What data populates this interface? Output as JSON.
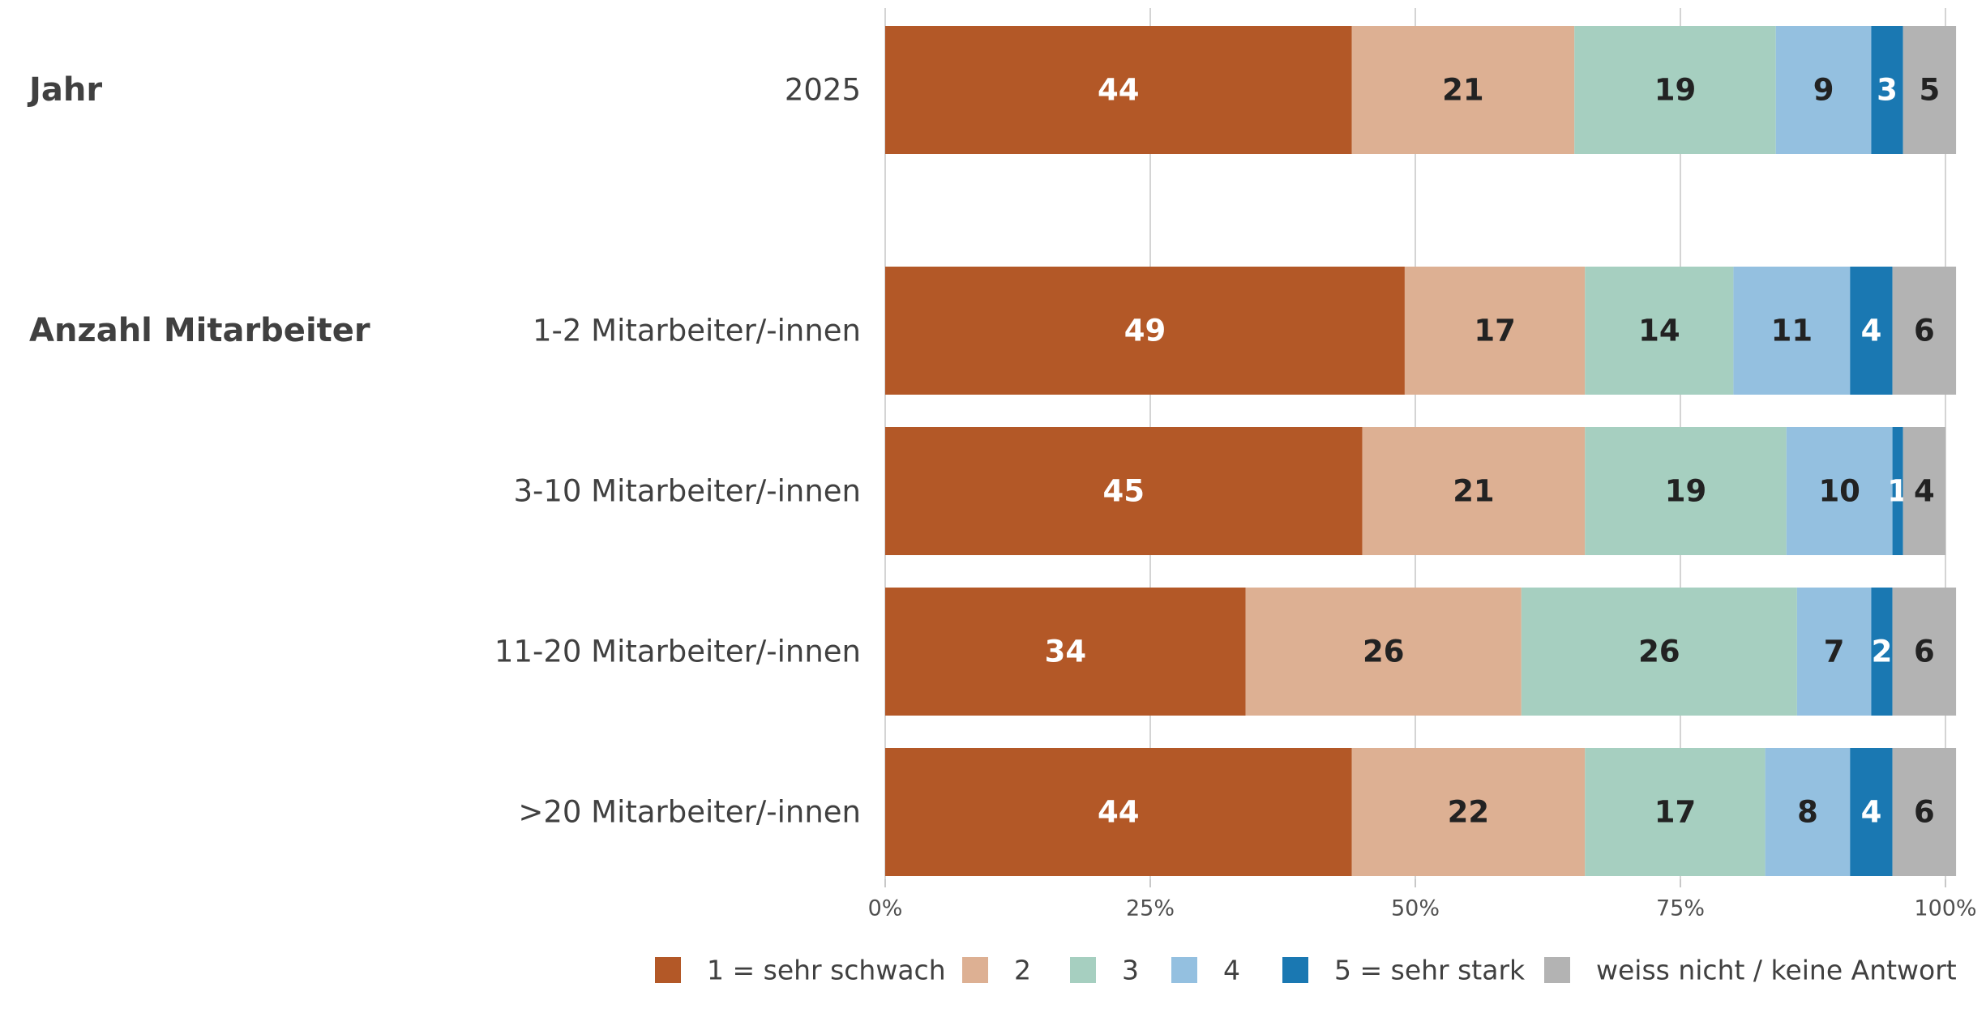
{
  "chart_data": {
    "type": "bar",
    "orientation": "horizontal",
    "stacked": true,
    "xlim": [
      0,
      100
    ],
    "x_ticks": [
      "0%",
      "25%",
      "50%",
      "75%",
      "100%"
    ],
    "grid": true,
    "legend_position": "bottom",
    "groups": [
      {
        "label": "Jahr",
        "rows": [
          "2025"
        ]
      },
      {
        "label": "Anzahl Mitarbeiter",
        "rows": [
          "1-2 Mitarbeiter/-innen",
          "3-10 Mitarbeiter/-innen",
          "11-20 Mitarbeiter/-innen",
          ">20 Mitarbeiter/-innen"
        ]
      }
    ],
    "categories": [
      "2025",
      "1-2 Mitarbeiter/-innen",
      "3-10 Mitarbeiter/-innen",
      "11-20 Mitarbeiter/-innen",
      ">20 Mitarbeiter/-innen"
    ],
    "series": [
      {
        "name": "1 = sehr schwach",
        "color": "#b35827",
        "label_color": "#ffffff",
        "values": [
          44,
          49,
          45,
          34,
          44
        ]
      },
      {
        "name": "2",
        "color": "#ddb093",
        "label_color": "#222222",
        "values": [
          21,
          17,
          21,
          26,
          22
        ]
      },
      {
        "name": "3",
        "color": "#a6cfc0",
        "label_color": "#222222",
        "values": [
          19,
          14,
          19,
          26,
          17
        ]
      },
      {
        "name": "4",
        "color": "#94c0e0",
        "label_color": "#222222",
        "values": [
          9,
          11,
          10,
          7,
          8
        ]
      },
      {
        "name": "5 = sehr stark",
        "color": "#1a78b2",
        "label_color": "#ffffff",
        "values": [
          3,
          4,
          1,
          2,
          4
        ]
      },
      {
        "name": "weiss nicht / keine Antwort",
        "color": "#b3b3b3",
        "label_color": "#222222",
        "values": [
          5,
          6,
          4,
          6,
          6
        ]
      }
    ]
  }
}
